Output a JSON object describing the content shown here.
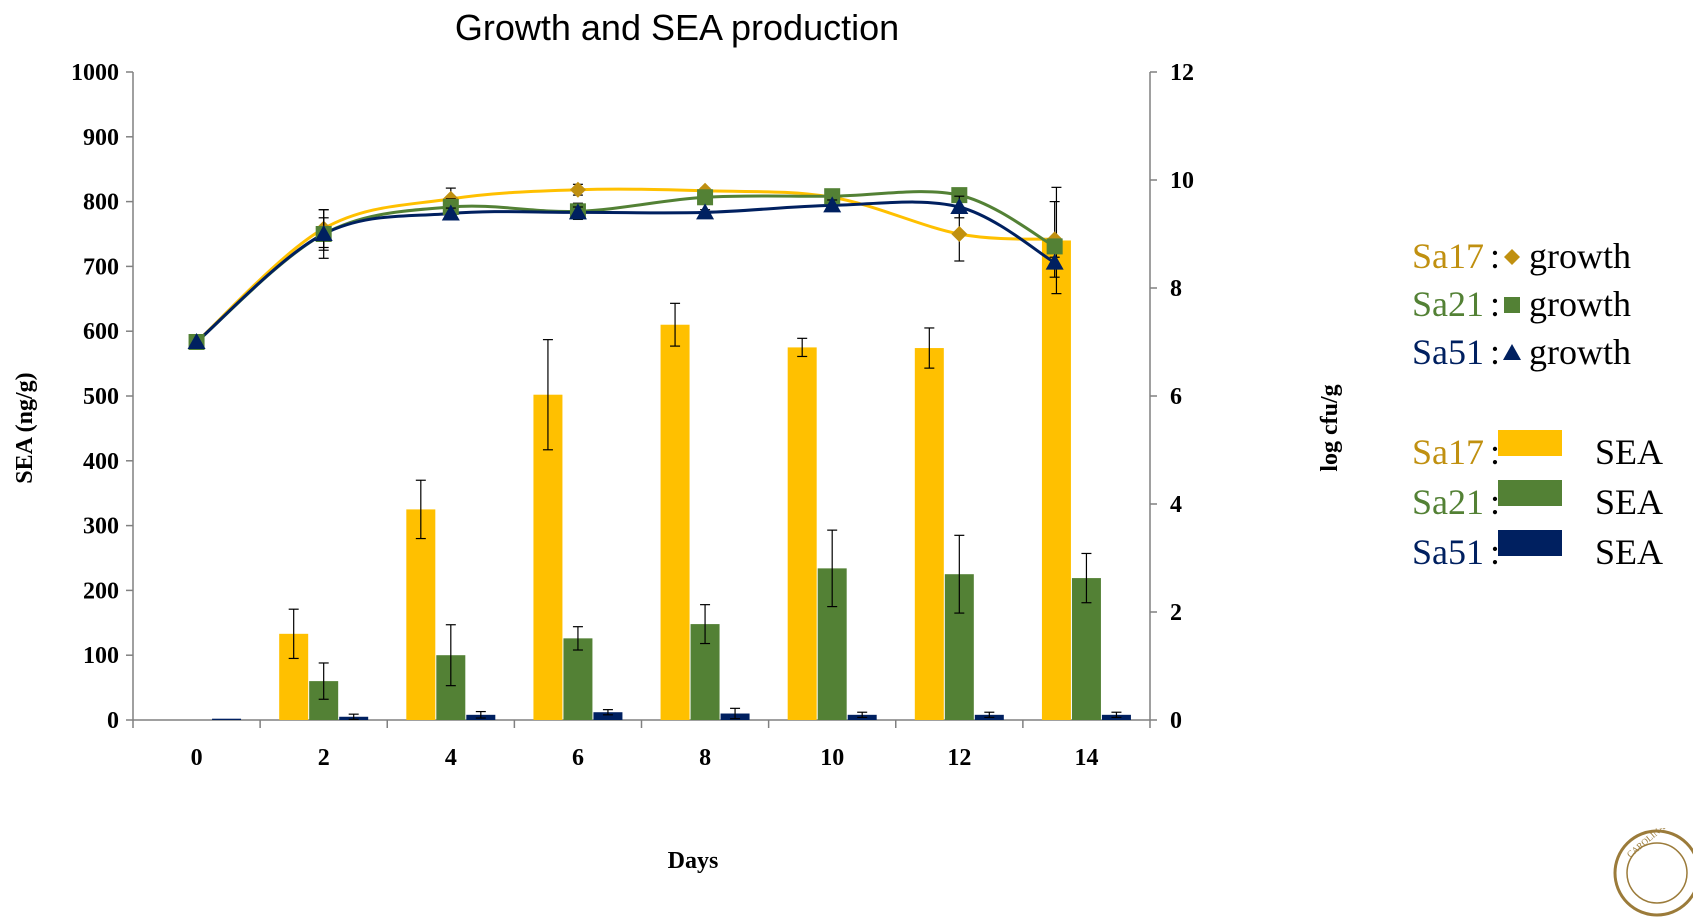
{
  "chart_data": {
    "type": "bar",
    "title": "Growth and SEA production",
    "xlabel": "Days",
    "ylabel": "SEA (ng/g)",
    "y2label": "log cfu/g",
    "categories": [
      "0",
      "2",
      "4",
      "6",
      "8",
      "10",
      "12",
      "14"
    ],
    "ylim": [
      0,
      1000
    ],
    "yticks": [
      "0",
      "100",
      "200",
      "300",
      "400",
      "500",
      "600",
      "700",
      "800",
      "900",
      "1000"
    ],
    "y2lim": [
      0,
      12
    ],
    "y2ticks": [
      "0",
      "2",
      "4",
      "6",
      "8",
      "10",
      "12"
    ],
    "bar_series": [
      {
        "name": "Sa17",
        "color": "#FFC000",
        "values": [
          0,
          133,
          325,
          502,
          610,
          575,
          574,
          740
        ],
        "errors": [
          0,
          38,
          45,
          85,
          33,
          14,
          31,
          82
        ]
      },
      {
        "name": "Sa21",
        "color": "#538135",
        "values": [
          0,
          60,
          100,
          126,
          148,
          234,
          225,
          219
        ],
        "errors": [
          0,
          28,
          47,
          18,
          30,
          59,
          60,
          38
        ]
      },
      {
        "name": "Sa51",
        "color": "#002060",
        "values": [
          2,
          5,
          8,
          12,
          10,
          8,
          8,
          8
        ],
        "errors": [
          0,
          4,
          5,
          4,
          8,
          4,
          4,
          4
        ]
      }
    ],
    "line_series": [
      {
        "name": "Sa17",
        "marker": "diamond",
        "color": "#FFC000",
        "marker_color": "#C09010",
        "x": [
          0,
          2,
          4,
          6,
          8,
          10,
          12,
          13.5
        ],
        "y": [
          7.0,
          9.1,
          9.65,
          9.82,
          9.8,
          9.68,
          9.0,
          8.9
        ],
        "errors": [
          0,
          0.35,
          0.2,
          0.1,
          0.05,
          0.1,
          0.5,
          0.7
        ]
      },
      {
        "name": "Sa21",
        "marker": "square",
        "color": "#538135",
        "marker_color": "#538135",
        "x": [
          0,
          2,
          4,
          6,
          8,
          10,
          12,
          13.5
        ],
        "y": [
          7.0,
          9.0,
          9.5,
          9.42,
          9.68,
          9.7,
          9.72,
          8.77
        ],
        "errors": [
          0,
          0.45,
          0.15,
          0.15,
          0.05,
          0.1,
          0.1,
          0.1
        ]
      },
      {
        "name": "Sa51",
        "marker": "triangle",
        "color": "#002060",
        "marker_color": "#002060",
        "x": [
          0,
          2,
          4,
          6,
          8,
          10,
          12,
          13.5
        ],
        "y": [
          7.0,
          9.0,
          9.38,
          9.4,
          9.4,
          9.53,
          9.5,
          8.47
        ],
        "errors": [
          0,
          0.3,
          0.1,
          0.1,
          0.05,
          0.1,
          0.2,
          0.1
        ]
      }
    ],
    "legend": {
      "growth": [
        {
          "name": "Sa17",
          "colon": ":",
          "marker": "diamond",
          "text": "growth",
          "color": "#C09010"
        },
        {
          "name": "Sa21",
          "colon": ":",
          "marker": "square",
          "text": "growth",
          "color": "#538135"
        },
        {
          "name": "Sa51",
          "colon": ":",
          "marker": "triangle",
          "text": "growth",
          "color": "#002060"
        }
      ],
      "sea": [
        {
          "name": "Sa17",
          "colon": ":",
          "text": "SEA",
          "color": "#FFC000",
          "text_color": "#C09010"
        },
        {
          "name": "Sa21",
          "colon": ":",
          "text": "SEA",
          "color": "#538135",
          "text_color": "#538135"
        },
        {
          "name": "Sa51",
          "colon": ":",
          "text": "SEA",
          "color": "#002060",
          "text_color": "#002060"
        }
      ]
    }
  },
  "logo": {
    "name": "university-seal",
    "text": "CAROLINA"
  }
}
